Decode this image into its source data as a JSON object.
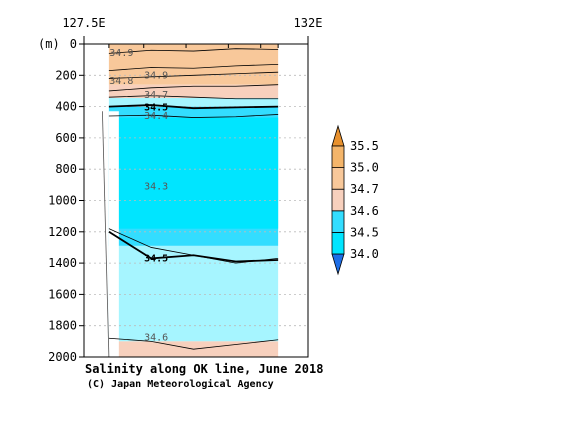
{
  "chart_data": {
    "type": "heatmap",
    "title": "Salinity along OK line, June 2018",
    "credit": "(C) Japan Meteorological Agency",
    "xlabel": "",
    "ylabel": "(m)",
    "x_ticks": [
      "127.5E",
      "132E"
    ],
    "x_range": [
      127.5,
      132
    ],
    "ylim": [
      2000,
      0
    ],
    "y_ticks": [
      0,
      200,
      400,
      600,
      800,
      1000,
      1200,
      1400,
      1600,
      1800,
      2000
    ],
    "grid": true,
    "legend": {
      "placement": "right",
      "levels": [
        34.0,
        34.5,
        34.6,
        34.7,
        35.0,
        35.5
      ],
      "labels": [
        "34.0",
        "34.5",
        "34.6",
        "34.7",
        "35.0",
        "35.5"
      ],
      "colors": [
        "#00e5ff",
        "#33ddff",
        "#f7d0bd",
        "#f8c89a",
        "#f4b56a"
      ],
      "under_color": "#1e6ee6",
      "over_color": "#e8912e"
    },
    "fill_colors": {
      "s_ge_34.9": "#f8c89a",
      "s_34.7_34.9": "#f7d0bd",
      "s_34.5_34.7": "#a6f5ff",
      "s_34.3_34.5": "#33ddff",
      "s_lt_34.3": "#00e5ff",
      "below_34.5_deep": "#a6f5ff",
      "deep_34.6": "#f7d0bd"
    },
    "section_lon_range": [
      128.0,
      131.4
    ],
    "contour_lines": [
      {
        "value": "34.9",
        "depth": [
          60,
          40,
          45,
          30,
          35
        ]
      },
      {
        "value": "34.9",
        "depth": [
          170,
          150,
          155,
          140,
          130
        ]
      },
      {
        "value": "34.8",
        "depth": [
          220,
          210,
          200,
          190,
          180
        ]
      },
      {
        "value": "34.7",
        "depth": [
          300,
          280,
          270,
          270,
          260
        ]
      },
      {
        "value": "34.6",
        "depth": [
          340,
          330,
          340,
          350,
          350
        ]
      },
      {
        "value": "34.5",
        "depth": [
          400,
          390,
          410,
          405,
          400
        ]
      },
      {
        "value": "34.4",
        "depth": [
          460,
          455,
          470,
          465,
          450
        ]
      },
      {
        "value": "34.3",
        "depth": [
          1180,
          1300,
          1350,
          1400,
          1370
        ]
      },
      {
        "value": "34.5",
        "depth": [
          1200,
          1370,
          1350,
          1390,
          1380
        ]
      },
      {
        "value": "34.6",
        "depth": [
          1880,
          1900,
          1950,
          1920,
          1890
        ]
      }
    ],
    "contour_labels": [
      {
        "text": "34.9",
        "lon": 128.25,
        "depth": 50,
        "bold": false
      },
      {
        "text": "34.9",
        "lon": 128.95,
        "depth": 195,
        "bold": false
      },
      {
        "text": "34.8",
        "lon": 128.25,
        "depth": 230,
        "bold": false
      },
      {
        "text": "34.7",
        "lon": 128.95,
        "depth": 320,
        "bold": false
      },
      {
        "text": "34.5",
        "lon": 128.95,
        "depth": 400,
        "bold": true
      },
      {
        "text": "34.4",
        "lon": 128.95,
        "depth": 455,
        "bold": false
      },
      {
        "text": "34.3",
        "lon": 128.95,
        "depth": 905,
        "bold": false
      },
      {
        "text": "34.5",
        "lon": 128.95,
        "depth": 1365,
        "bold": true
      },
      {
        "text": "34.6",
        "lon": 128.95,
        "depth": 1870,
        "bold": false
      }
    ]
  }
}
